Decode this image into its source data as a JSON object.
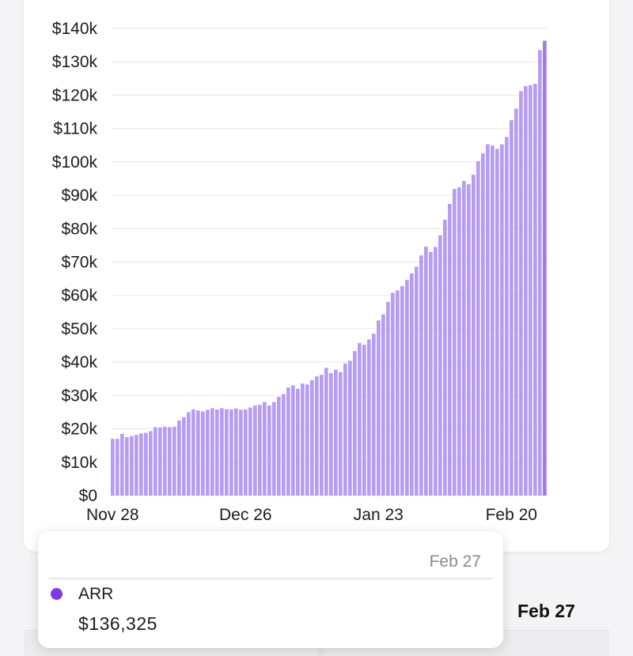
{
  "colors": {
    "bar": "#b79cf3",
    "bar_highlight": "#9f7aea",
    "grid": "#e7e7ea",
    "dot": "#7c3aed"
  },
  "chart_data": {
    "type": "bar",
    "title": "",
    "xlabel": "",
    "ylabel": "",
    "ylim": [
      0,
      140000
    ],
    "y_ticks": [
      "$0",
      "$10k",
      "$20k",
      "$30k",
      "$40k",
      "$50k",
      "$60k",
      "$70k",
      "$80k",
      "$90k",
      "$100k",
      "$110k",
      "$120k",
      "$130k",
      "$140k"
    ],
    "x_ticks": [
      {
        "label": "Nov 28",
        "index": 0
      },
      {
        "label": "Dec 26",
        "index": 28
      },
      {
        "label": "Jan 23",
        "index": 56
      },
      {
        "label": "Feb 20",
        "index": 84
      }
    ],
    "series": [
      {
        "name": "ARR",
        "values": [
          17000,
          17000,
          18500,
          17500,
          17800,
          18200,
          18600,
          18800,
          19300,
          20500,
          20400,
          20600,
          20500,
          20600,
          22500,
          23500,
          25000,
          25800,
          25500,
          25200,
          25700,
          26200,
          25800,
          26200,
          25900,
          25800,
          26100,
          25700,
          25800,
          26400,
          27000,
          27200,
          28000,
          27000,
          28000,
          29600,
          30400,
          32400,
          33000,
          32000,
          33600,
          33300,
          34600,
          35700,
          36200,
          38300,
          36700,
          37700,
          37000,
          39600,
          40400,
          43300,
          45700,
          45200,
          46800,
          48500,
          52500,
          54300,
          58000,
          60800,
          61500,
          62800,
          64600,
          66600,
          68600,
          72000,
          74600,
          73000,
          74500,
          78000,
          82700,
          87400,
          91900,
          92400,
          94300,
          93300,
          96200,
          100200,
          102600,
          105300,
          104900,
          103900,
          105300,
          107500,
          112500,
          116000,
          121200,
          122700,
          123000,
          123400,
          133500,
          136325
        ]
      }
    ],
    "highlight_index": 91
  },
  "tooltip": {
    "date": "Feb 27",
    "series_name": "ARR",
    "value": "$136,325"
  },
  "side_date": "Feb 27"
}
